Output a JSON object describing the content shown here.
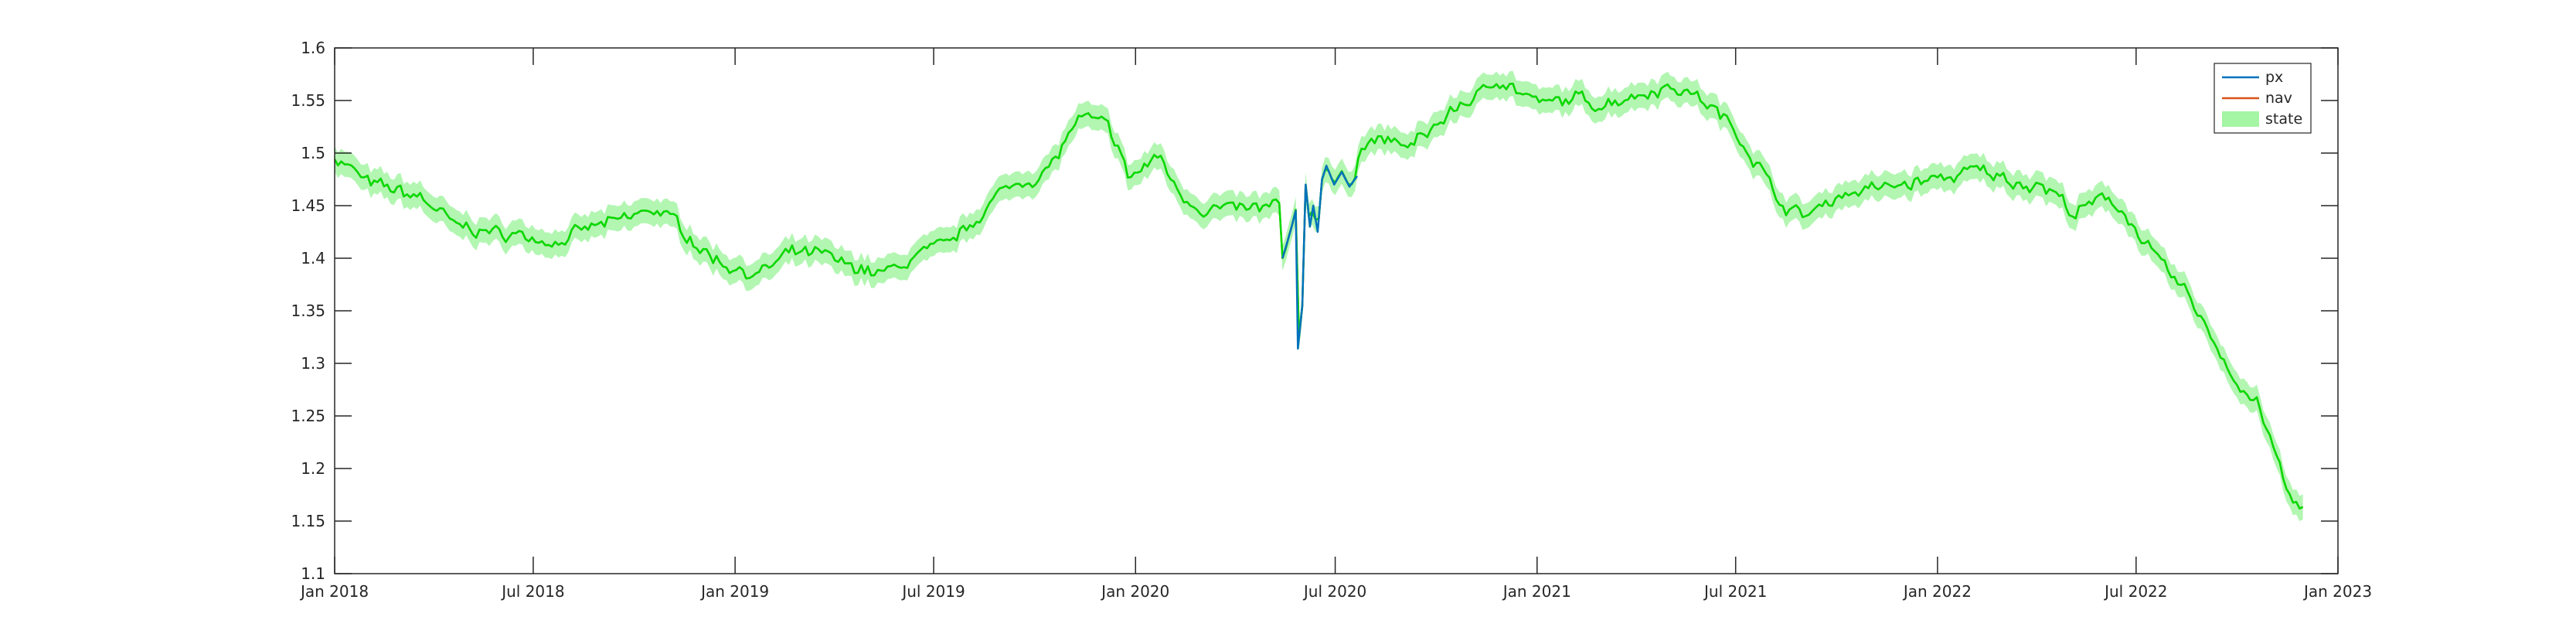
{
  "chart_data": {
    "type": "line",
    "title": "",
    "xlabel": "",
    "ylabel": "",
    "x_axis": {
      "type": "date",
      "range": [
        "2018-01-01",
        "2023-01-01"
      ],
      "ticks": [
        {
          "value": "2018-01-01",
          "label": "Jan 2018"
        },
        {
          "value": "2018-07-01",
          "label": "Jul 2018"
        },
        {
          "value": "2019-01-01",
          "label": "Jan 2019"
        },
        {
          "value": "2019-07-01",
          "label": "Jul 2019"
        },
        {
          "value": "2020-01-01",
          "label": "Jan 2020"
        },
        {
          "value": "2020-07-01",
          "label": "Jul 2020"
        },
        {
          "value": "2021-01-01",
          "label": "Jan 2021"
        },
        {
          "value": "2021-07-01",
          "label": "Jul 2021"
        },
        {
          "value": "2022-01-01",
          "label": "Jan 2022"
        },
        {
          "value": "2022-07-01",
          "label": "Jul 2022"
        },
        {
          "value": "2023-01-01",
          "label": "Jan 2023"
        }
      ]
    },
    "y_axis": {
      "range": [
        1.1,
        1.6
      ],
      "ticks": [
        {
          "value": 1.1,
          "label": "1.1"
        },
        {
          "value": 1.15,
          "label": "1.15"
        },
        {
          "value": 1.2,
          "label": "1.2"
        },
        {
          "value": 1.25,
          "label": "1.25"
        },
        {
          "value": 1.3,
          "label": "1.3"
        },
        {
          "value": 1.35,
          "label": "1.35"
        },
        {
          "value": 1.4,
          "label": "1.4"
        },
        {
          "value": 1.45,
          "label": "1.45"
        },
        {
          "value": 1.5,
          "label": "1.5"
        },
        {
          "value": 1.55,
          "label": "1.55"
        },
        {
          "value": 1.6,
          "label": "1.6"
        }
      ]
    },
    "grid": false,
    "legend": {
      "placement": "top-right"
    },
    "series": [
      {
        "name": "px",
        "color": "#0072bd",
        "points": [
          [
            "2020-05-14",
            1.4
          ],
          [
            "2020-05-21",
            1.425
          ],
          [
            "2020-05-26",
            1.445
          ],
          [
            "2020-05-28",
            1.314
          ],
          [
            "2020-06-01",
            1.355
          ],
          [
            "2020-06-04",
            1.47
          ],
          [
            "2020-06-08",
            1.43
          ],
          [
            "2020-06-11",
            1.45
          ],
          [
            "2020-06-15",
            1.425
          ],
          [
            "2020-06-19",
            1.475
          ],
          [
            "2020-06-23",
            1.488
          ],
          [
            "2020-06-30",
            1.47
          ],
          [
            "2020-07-07",
            1.482
          ],
          [
            "2020-07-14",
            1.468
          ],
          [
            "2020-07-21",
            1.478
          ]
        ]
      },
      {
        "name": "nav",
        "color": "#d95319",
        "points": [
          [
            "2018-01-01",
            1.497
          ],
          [
            "2018-01-15",
            1.486
          ],
          [
            "2018-02-01",
            1.47
          ],
          [
            "2018-02-20",
            1.466
          ],
          [
            "2018-03-05",
            1.462
          ],
          [
            "2018-03-20",
            1.458
          ],
          [
            "2018-04-05",
            1.446
          ],
          [
            "2018-04-20",
            1.43
          ],
          [
            "2018-05-10",
            1.428
          ],
          [
            "2018-05-25",
            1.424
          ],
          [
            "2018-06-10",
            1.423
          ],
          [
            "2018-06-25",
            1.421
          ],
          [
            "2018-07-10",
            1.418
          ],
          [
            "2018-07-25",
            1.416
          ],
          [
            "2018-08-10",
            1.423
          ],
          [
            "2018-08-25",
            1.43
          ],
          [
            "2018-09-15",
            1.434
          ],
          [
            "2018-10-01",
            1.44
          ],
          [
            "2018-10-20",
            1.447
          ],
          [
            "2018-11-05",
            1.436
          ],
          [
            "2018-11-20",
            1.422
          ],
          [
            "2018-12-05",
            1.405
          ],
          [
            "2018-12-20",
            1.396
          ],
          [
            "2019-01-05",
            1.39
          ],
          [
            "2019-01-20",
            1.384
          ],
          [
            "2019-02-05",
            1.393
          ],
          [
            "2019-02-20",
            1.404
          ],
          [
            "2019-03-10",
            1.404
          ],
          [
            "2019-03-25",
            1.402
          ],
          [
            "2019-04-10",
            1.393
          ],
          [
            "2019-04-25",
            1.392
          ],
          [
            "2019-05-10",
            1.385
          ],
          [
            "2019-05-25",
            1.388
          ],
          [
            "2019-06-05",
            1.396
          ],
          [
            "2019-06-20",
            1.404
          ],
          [
            "2019-07-05",
            1.408
          ],
          [
            "2019-07-20",
            1.418
          ],
          [
            "2019-08-05",
            1.433
          ],
          [
            "2019-08-20",
            1.452
          ],
          [
            "2019-09-05",
            1.465
          ],
          [
            "2019-09-20",
            1.474
          ],
          [
            "2019-10-05",
            1.478
          ],
          [
            "2019-10-20",
            1.492
          ],
          [
            "2019-11-01",
            1.518
          ],
          [
            "2019-11-10",
            1.532
          ],
          [
            "2019-11-25",
            1.53
          ],
          [
            "2019-12-05",
            1.525
          ],
          [
            "2019-12-15",
            1.51
          ],
          [
            "2019-12-25",
            1.477
          ],
          [
            "2020-01-05",
            1.483
          ],
          [
            "2020-01-15",
            1.492
          ],
          [
            "2020-01-25",
            1.496
          ],
          [
            "2020-02-05",
            1.47
          ],
          [
            "2020-02-15",
            1.458
          ],
          [
            "2020-03-01",
            1.448
          ],
          [
            "2020-03-15",
            1.447
          ],
          [
            "2020-04-01",
            1.446
          ],
          [
            "2020-04-15",
            1.446
          ],
          [
            "2020-05-01",
            1.448
          ],
          [
            "2020-05-15",
            1.451
          ],
          [
            "2020-05-25",
            1.45
          ],
          [
            "2020-06-05",
            1.457
          ],
          [
            "2020-06-15",
            1.463
          ],
          [
            "2020-07-01",
            1.475
          ],
          [
            "2020-07-15",
            1.494
          ],
          [
            "2020-07-25",
            1.508
          ],
          [
            "2020-08-10",
            1.513
          ],
          [
            "2020-08-25",
            1.509
          ],
          [
            "2020-09-10",
            1.506
          ],
          [
            "2020-09-25",
            1.522
          ],
          [
            "2020-10-10",
            1.534
          ],
          [
            "2020-10-25",
            1.548
          ],
          [
            "2020-11-10",
            1.554
          ],
          [
            "2020-11-25",
            1.572
          ],
          [
            "2020-12-05",
            1.567
          ],
          [
            "2020-12-20",
            1.555
          ],
          [
            "2021-01-05",
            1.546
          ],
          [
            "2021-01-20",
            1.548
          ],
          [
            "2021-02-05",
            1.552
          ],
          [
            "2021-02-20",
            1.548
          ],
          [
            "2021-03-05",
            1.548
          ],
          [
            "2021-03-20",
            1.553
          ],
          [
            "2021-04-05",
            1.556
          ],
          [
            "2021-04-20",
            1.562
          ],
          [
            "2021-05-05",
            1.563
          ],
          [
            "2021-05-20",
            1.558
          ],
          [
            "2021-06-05",
            1.547
          ],
          [
            "2021-06-20",
            1.533
          ],
          [
            "2021-07-05",
            1.516
          ],
          [
            "2021-07-20",
            1.492
          ],
          [
            "2021-08-05",
            1.463
          ],
          [
            "2021-08-20",
            1.444
          ],
          [
            "2021-09-05",
            1.441
          ],
          [
            "2021-09-20",
            1.452
          ],
          [
            "2021-10-05",
            1.461
          ],
          [
            "2021-10-20",
            1.464
          ],
          [
            "2021-11-05",
            1.466
          ],
          [
            "2021-11-20",
            1.468
          ],
          [
            "2021-12-05",
            1.471
          ],
          [
            "2021-12-20",
            1.473
          ],
          [
            "2022-01-05",
            1.476
          ],
          [
            "2022-01-20",
            1.479
          ],
          [
            "2022-02-05",
            1.483
          ],
          [
            "2022-02-20",
            1.48
          ],
          [
            "2022-03-05",
            1.475
          ],
          [
            "2022-03-20",
            1.472
          ],
          [
            "2022-04-05",
            1.47
          ],
          [
            "2022-04-20",
            1.46
          ],
          [
            "2022-05-05",
            1.442
          ],
          [
            "2022-05-20",
            1.449
          ],
          [
            "2022-06-05",
            1.458
          ],
          [
            "2022-06-20",
            1.445
          ],
          [
            "2022-07-05",
            1.42
          ],
          [
            "2022-07-20",
            1.398
          ],
          [
            "2022-08-05",
            1.378
          ],
          [
            "2022-08-20",
            1.362
          ],
          [
            "2022-09-05",
            1.33
          ],
          [
            "2022-09-20",
            1.303
          ],
          [
            "2022-10-05",
            1.274
          ],
          [
            "2022-10-20",
            1.263
          ],
          [
            "2022-11-05",
            1.212
          ],
          [
            "2022-11-20",
            1.166
          ],
          [
            "2022-12-01",
            1.163
          ]
        ]
      },
      {
        "name": "state",
        "color": "#00dd00",
        "band_color": "#a4f5a4",
        "band_half_width": 0.012
      }
    ]
  }
}
